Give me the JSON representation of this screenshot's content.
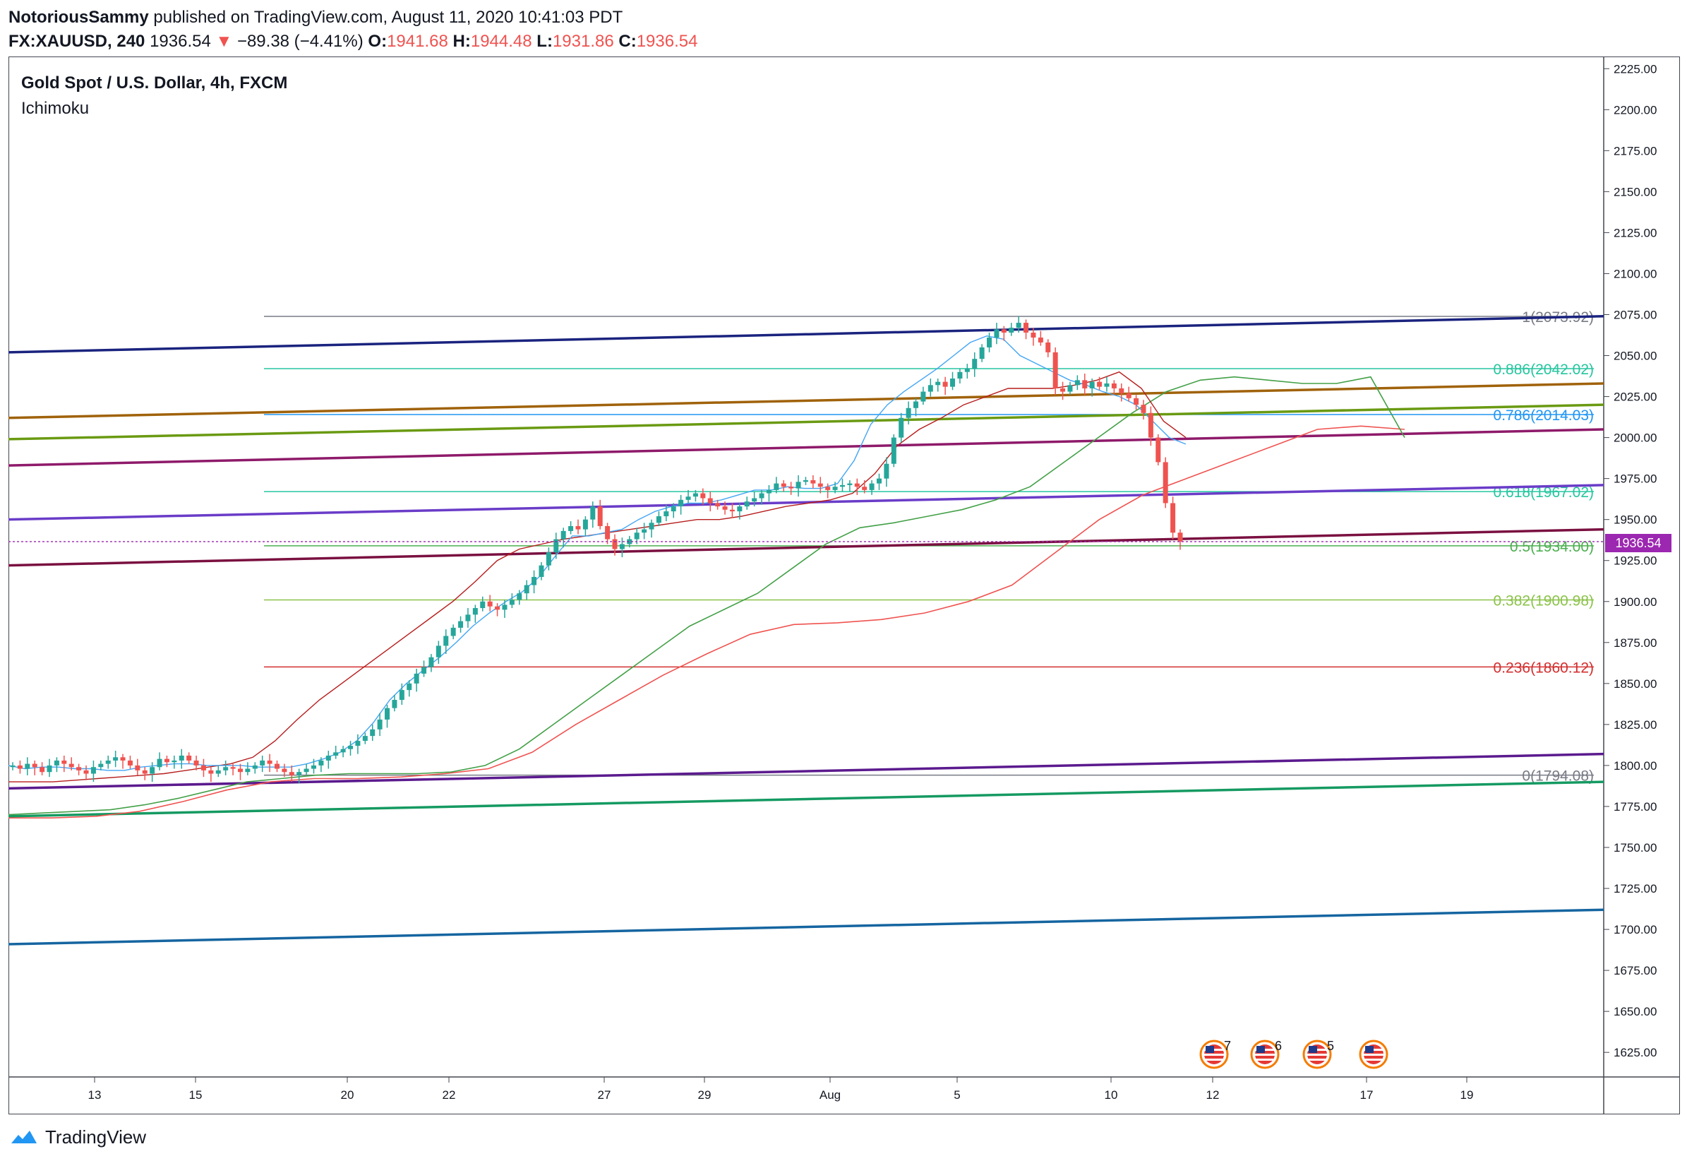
{
  "header": {
    "author": "NotoriousSammy",
    "published_text": "published on TradingView.com, August 11, 2020 10:41:03 PDT",
    "symbol": "FX:XAUUSD, 240",
    "last": "1936.54",
    "change_arrow": "▼",
    "change": "−89.38 (−4.41%)",
    "o_label": "O:",
    "o": "1941.68",
    "h_label": "H:",
    "h": "1944.48",
    "l_label": "L:",
    "l": "1931.86",
    "c_label": "C:",
    "c": "1936.54"
  },
  "legend": {
    "title": "Gold Spot / U.S. Dollar, 4h, FXCM",
    "indicator": "Ichimoku"
  },
  "footer": {
    "brand": "TradingView",
    "logo_icon": "tradingview-logo-icon"
  },
  "price_tag": {
    "value": "1936.54",
    "color": "#9c27b0"
  },
  "events": [
    {
      "icon": "us-flag-icon",
      "count": "7"
    },
    {
      "icon": "us-flag-icon",
      "count": "6"
    },
    {
      "icon": "us-flag-icon",
      "count": "5"
    },
    {
      "icon": "us-flag-icon",
      "count": ""
    }
  ],
  "chart_data": {
    "type": "candlestick",
    "y_range": [
      1610,
      2232
    ],
    "y_ticks": [
      "2225.00",
      "2200.00",
      "2175.00",
      "2150.00",
      "2125.00",
      "2100.00",
      "2075.00",
      "2050.00",
      "2025.00",
      "2000.00",
      "1975.00",
      "1950.00",
      "1925.00",
      "1900.00",
      "1875.00",
      "1850.00",
      "1825.00",
      "1800.00",
      "1775.00",
      "1750.00",
      "1725.00",
      "1700.00",
      "1675.00",
      "1650.00",
      "1625.00"
    ],
    "x_ticks": [
      "13",
      "15",
      "20",
      "22",
      "27",
      "29",
      "Aug",
      "5",
      "10",
      "12",
      "17",
      "19"
    ],
    "fibonacci": [
      {
        "label": "1(2073.92)",
        "price": 2073.92,
        "color": "#787b86"
      },
      {
        "label": "0.886(2042.02)",
        "price": 2042.02,
        "color": "#26c6a0"
      },
      {
        "label": "0.786(2014.03)",
        "price": 2014.03,
        "color": "#2196f3"
      },
      {
        "label": "0.618(1967.02)",
        "price": 1967.02,
        "color": "#26c6a0"
      },
      {
        "label": "0.5(1934.00)",
        "price": 1934.0,
        "color": "#4caf50"
      },
      {
        "label": "0.382(1900.98)",
        "price": 1900.98,
        "color": "#8bc34a"
      },
      {
        "label": "0.236(1860.12)",
        "price": 1860.12,
        "color": "#d32f2f"
      },
      {
        "label": "0(1794.08)",
        "price": 1794.08,
        "color": "#787b86"
      }
    ],
    "trendlines": [
      {
        "color": "#1a237e",
        "from": 2052,
        "to": 2074
      },
      {
        "color": "#a0620a",
        "from": 2012,
        "to": 2033
      },
      {
        "color": "#6a9a12",
        "from": 1999,
        "to": 2020
      },
      {
        "color": "#8e1a6a",
        "from": 1983,
        "to": 2005
      },
      {
        "color": "#6a3cc8",
        "from": 1950,
        "to": 1971
      },
      {
        "color": "#7a1040",
        "from": 1922,
        "to": 1944
      },
      {
        "color": "#5b1a8e",
        "from": 1786,
        "to": 1807
      },
      {
        "color": "#159a62",
        "from": 1769,
        "to": 1790
      },
      {
        "color": "#1565a0",
        "from": 1691,
        "to": 1712
      }
    ],
    "candles_close": [
      1800,
      1798,
      1801,
      1799,
      1796,
      1800,
      1803,
      1801,
      1799,
      1797,
      1795,
      1799,
      1801,
      1803,
      1805,
      1803,
      1800,
      1797,
      1795,
      1799,
      1804,
      1802,
      1803,
      1806,
      1803,
      1800,
      1797,
      1795,
      1797,
      1799,
      1798,
      1796,
      1798,
      1800,
      1803,
      1801,
      1798,
      1796,
      1794,
      1796,
      1798,
      1800,
      1803,
      1806,
      1808,
      1810,
      1812,
      1815,
      1818,
      1822,
      1828,
      1835,
      1840,
      1846,
      1850,
      1856,
      1860,
      1866,
      1873,
      1879,
      1884,
      1888,
      1892,
      1896,
      1900,
      1897,
      1895,
      1898,
      1901,
      1905,
      1910,
      1915,
      1922,
      1930,
      1938,
      1943,
      1946,
      1944,
      1950,
      1958,
      1946,
      1938,
      1932,
      1935,
      1938,
      1942,
      1944,
      1948,
      1952,
      1955,
      1958,
      1962,
      1964,
      1966,
      1963,
      1960,
      1958,
      1956,
      1955,
      1958,
      1961,
      1963,
      1966,
      1968,
      1972,
      1970,
      1969,
      1973,
      1974,
      1972,
      1970,
      1968,
      1970,
      1971,
      1972,
      1970,
      1968,
      1972,
      1975,
      1984,
      2000,
      2012,
      2018,
      2022,
      2028,
      2032,
      2034,
      2031,
      2036,
      2040,
      2042,
      2048,
      2055,
      2061,
      2066,
      2064,
      2067,
      2070,
      2064,
      2061,
      2058,
      2052,
      2030,
      2028,
      2032,
      2035,
      2030,
      2034,
      2031,
      2033,
      2030,
      2027,
      2024,
      2020,
      2015,
      2000,
      1985,
      1960,
      1942,
      1936.54
    ],
    "ichimoku": {
      "tenkan": [
        1800,
        1798,
        1799,
        1799,
        1798,
        1798,
        1797,
        1797,
        1799,
        1800,
        1801,
        1801,
        1800,
        1800,
        1800,
        1799,
        1799,
        1799,
        1801,
        1804,
        1808,
        1815,
        1826,
        1840,
        1850,
        1858,
        1866,
        1875,
        1885,
        1893,
        1900,
        1906,
        1915,
        1928,
        1940,
        1940,
        1942,
        1944,
        1950,
        1955,
        1958,
        1960,
        1960,
        1962,
        1965,
        1968,
        1968,
        1970,
        1969,
        1969,
        1972,
        1986,
        2008,
        2020,
        2028,
        2035,
        2042,
        2050,
        2058,
        2062,
        2060,
        2050,
        2045,
        2040,
        2035,
        2032,
        2028,
        2025,
        2020,
        2010,
        2000,
        1996
      ],
      "kijun": [
        1790,
        1790,
        1790,
        1791,
        1792,
        1793,
        1794,
        1795,
        1797,
        1799,
        1801,
        1805,
        1815,
        1828,
        1840,
        1850,
        1860,
        1870,
        1880,
        1890,
        1900,
        1912,
        1925,
        1932,
        1935,
        1938,
        1940,
        1942,
        1944,
        1946,
        1948,
        1950,
        1950,
        1952,
        1955,
        1958,
        1960,
        1962,
        1966,
        1978,
        1995,
        2005,
        2012,
        2020,
        2025,
        2030,
        2030,
        2030,
        2032,
        2035,
        2040,
        2030,
        2010,
        2000
      ],
      "span_a": [
        1770,
        1771,
        1772,
        1773,
        1776,
        1780,
        1785,
        1790,
        1792,
        1794,
        1795,
        1795,
        1795,
        1796,
        1800,
        1810,
        1825,
        1840,
        1855,
        1870,
        1885,
        1895,
        1905,
        1920,
        1935,
        1945,
        1948,
        1952,
        1956,
        1962,
        1970,
        1985,
        2000,
        2015,
        2028,
        2035,
        2037,
        2035,
        2033,
        2033,
        2037,
        2000
      ],
      "span_b": [
        1768,
        1768,
        1769,
        1772,
        1778,
        1785,
        1790,
        1792,
        1792,
        1793,
        1795,
        1798,
        1808,
        1825,
        1840,
        1855,
        1868,
        1880,
        1886,
        1887,
        1889,
        1893,
        1900,
        1910,
        1930,
        1950,
        1965,
        1975,
        1985,
        1995,
        2005,
        2007,
        2005
      ]
    }
  }
}
